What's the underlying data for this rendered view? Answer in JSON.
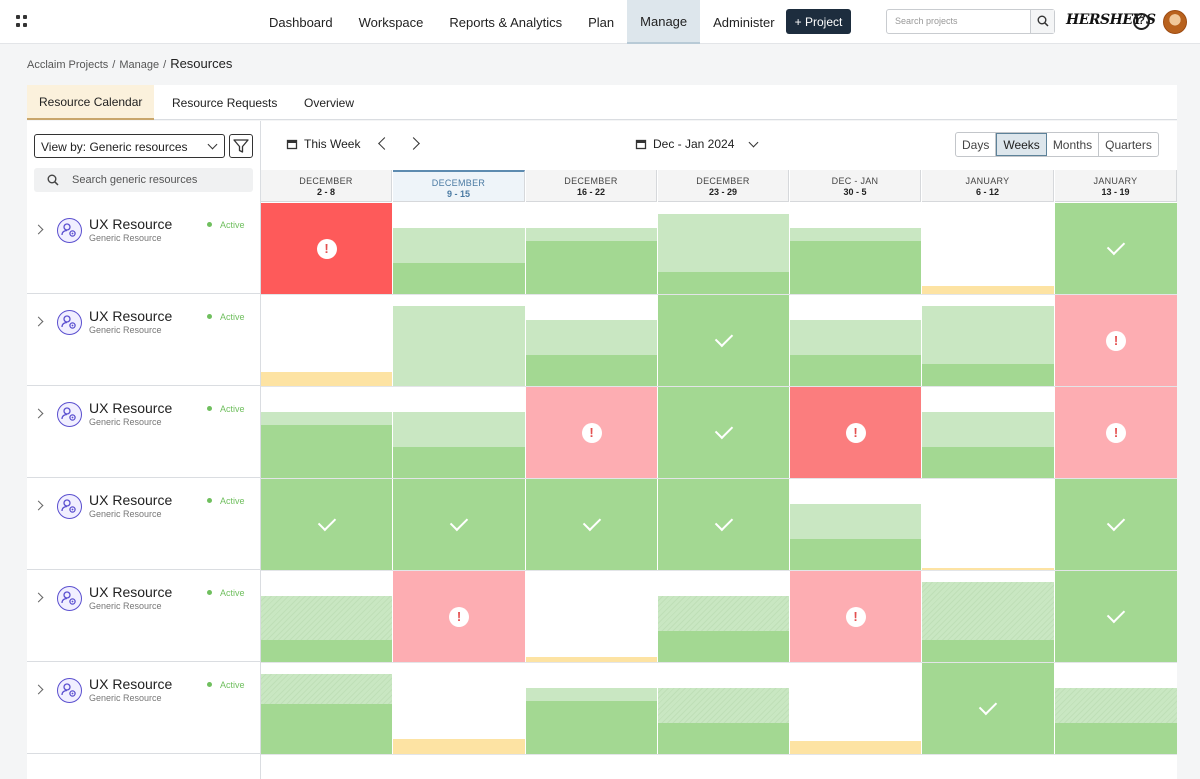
{
  "nav": {
    "items": [
      {
        "label": "Dashboard",
        "active": false
      },
      {
        "label": "Workspace",
        "active": false
      },
      {
        "label": "Reports & Analytics",
        "active": false
      },
      {
        "label": "Plan",
        "active": false
      },
      {
        "label": "Manage",
        "active": true
      },
      {
        "label": "Administer",
        "active": false
      }
    ],
    "new_project_label": "+ Project",
    "search_placeholder": "Search projects",
    "brand_logo": "HERSHEY'S",
    "help_icon": "question-circle-icon",
    "avatar": "user-avatar"
  },
  "breadcrumb": {
    "items": [
      "Acclaim Projects",
      "Manage"
    ],
    "current": "Resources"
  },
  "tabs": [
    {
      "label": "Resource Calendar",
      "active": true
    },
    {
      "label": "Resource Requests",
      "active": false
    },
    {
      "label": "Overview",
      "active": false
    }
  ],
  "toolbar": {
    "view_by_label": "View by: Generic resources",
    "filter_icon": "filter-icon",
    "search_placeholder": "Search generic resources",
    "this_week_label": "This Week",
    "date_range_label": "Dec - Jan 2024",
    "scale_options": [
      {
        "label": "Days",
        "selected": false
      },
      {
        "label": "Weeks",
        "selected": true
      },
      {
        "label": "Months",
        "selected": false
      },
      {
        "label": "Quarters",
        "selected": false
      }
    ]
  },
  "weeks": [
    {
      "month": "DECEMBER",
      "days": "2 - 8",
      "current": false
    },
    {
      "month": "DECEMBER",
      "days": "9 - 15",
      "current": true
    },
    {
      "month": "DECEMBER",
      "days": "16 - 22",
      "current": false
    },
    {
      "month": "DECEMBER",
      "days": "23 - 29",
      "current": false
    },
    {
      "month": "DEC - JAN",
      "days": "30 - 5",
      "current": false
    },
    {
      "month": "JANUARY",
      "days": "6 - 12",
      "current": false
    },
    {
      "month": "JANUARY",
      "days": "13 - 19",
      "current": false
    }
  ],
  "resources": [
    {
      "name": "UX Resource",
      "type": "Generic Resource",
      "status": "Active"
    },
    {
      "name": "UX Resource",
      "type": "Generic Resource",
      "status": "Active"
    },
    {
      "name": "UX Resource",
      "type": "Generic Resource",
      "status": "Active"
    },
    {
      "name": "UX Resource",
      "type": "Generic Resource",
      "status": "Active"
    },
    {
      "name": "UX Resource",
      "type": "Generic Resource",
      "status": "Active"
    },
    {
      "name": "UX Resource",
      "type": "Generic Resource",
      "status": "Active"
    }
  ],
  "colors": {
    "overallocated": "#fe5a5a",
    "warning": "#fdadb2",
    "allocated": "#a3d892",
    "capacity": "#c9e7c2",
    "underallocated": "#fde3a3",
    "active_status": "#6fbf5e"
  },
  "allocations": [
    [
      {
        "kind": "red",
        "icon": "alert"
      },
      {
        "kind": "bar",
        "cap": 0.72,
        "fill": 0.34
      },
      {
        "kind": "bar",
        "cap": 0.72,
        "fill": 0.58
      },
      {
        "kind": "bar",
        "cap": 0.88,
        "fill": 0.24
      },
      {
        "kind": "bar",
        "cap": 0.72,
        "fill": 0.58
      },
      {
        "kind": "yellow",
        "fill": 0.09
      },
      {
        "kind": "full",
        "icon": "check"
      }
    ],
    [
      {
        "kind": "yellow",
        "fill": 0.15
      },
      {
        "kind": "bar",
        "cap": 0.88,
        "fill": 0.0
      },
      {
        "kind": "bar",
        "cap": 0.72,
        "fill": 0.34
      },
      {
        "kind": "full",
        "icon": "check"
      },
      {
        "kind": "bar",
        "cap": 0.72,
        "fill": 0.34
      },
      {
        "kind": "bar",
        "cap": 0.88,
        "fill": 0.24
      },
      {
        "kind": "pink",
        "icon": "alert"
      }
    ],
    [
      {
        "kind": "bar",
        "cap": 0.72,
        "fill": 0.58
      },
      {
        "kind": "bar",
        "cap": 0.72,
        "fill": 0.34
      },
      {
        "kind": "pink",
        "icon": "alert"
      },
      {
        "kind": "full",
        "icon": "check"
      },
      {
        "kind": "rose",
        "icon": "alert"
      },
      {
        "kind": "bar",
        "cap": 0.72,
        "fill": 0.34
      },
      {
        "kind": "pink",
        "icon": "alert"
      }
    ],
    [
      {
        "kind": "full",
        "icon": "check"
      },
      {
        "kind": "full",
        "icon": "check"
      },
      {
        "kind": "full",
        "icon": "check"
      },
      {
        "kind": "full",
        "icon": "check"
      },
      {
        "kind": "bar",
        "cap": 0.72,
        "fill": 0.34
      },
      {
        "kind": "yellow",
        "fill": 0.02
      },
      {
        "kind": "full",
        "icon": "check"
      }
    ],
    [
      {
        "kind": "bar",
        "cap": 0.72,
        "fill": 0.24,
        "striped": true
      },
      {
        "kind": "pink",
        "icon": "alert"
      },
      {
        "kind": "yellow",
        "fill": 0.05
      },
      {
        "kind": "bar",
        "cap": 0.72,
        "fill": 0.34,
        "striped": true
      },
      {
        "kind": "pink",
        "icon": "alert"
      },
      {
        "kind": "bar",
        "cap": 0.88,
        "fill": 0.24,
        "striped": true
      },
      {
        "kind": "full",
        "icon": "check"
      }
    ],
    [
      {
        "kind": "bar",
        "cap": 0.88,
        "fill": 0.55,
        "striped": true
      },
      {
        "kind": "yellow",
        "fill": 0.17
      },
      {
        "kind": "bar",
        "cap": 0.72,
        "fill": 0.58
      },
      {
        "kind": "bar",
        "cap": 0.72,
        "fill": 0.34,
        "striped": true
      },
      {
        "kind": "yellow",
        "fill": 0.14
      },
      {
        "kind": "full",
        "icon": "check"
      },
      {
        "kind": "bar",
        "cap": 0.72,
        "fill": 0.34,
        "striped": true
      }
    ]
  ]
}
